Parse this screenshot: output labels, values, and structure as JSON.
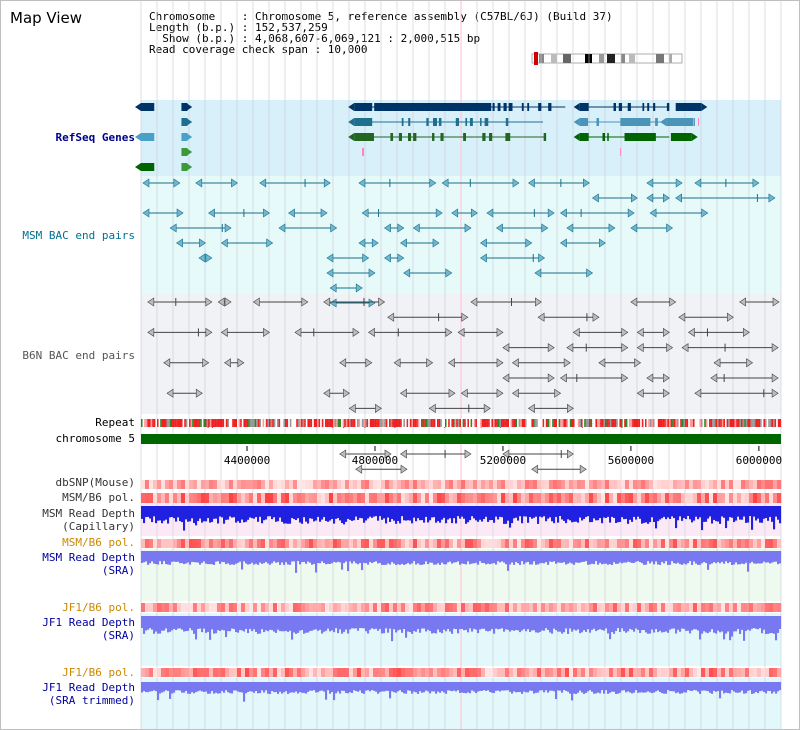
{
  "title": "Map View",
  "info": {
    "chromosome": "Chromosome    : Chromosome 5, reference assembly (C57BL/6J) (Build 37)",
    "length": "Length (b.p.) : 152,537,259",
    "show": "  Show (b.p.) : 4,068,607-6,069,121 : 2,000,515 bp",
    "span": "Read coverage check span : 10,000"
  },
  "view": {
    "start": 4068607,
    "end": 6069121
  },
  "tracks": {
    "refseq": {
      "label": "RefSeq Genes",
      "color": "#00008b",
      "bg": "#d8f0fa"
    },
    "msm_bac": {
      "label": "MSM BAC end pairs",
      "color": "#007090",
      "bg": "#e6fafa"
    },
    "b6n_bac": {
      "label": "B6N BAC end pairs",
      "color": "#404040",
      "bg": "#f0f2f6"
    },
    "repeat": {
      "label": "Repeat"
    },
    "chromosome": {
      "label": "chromosome 5",
      "color": "#006600"
    },
    "dbsnp": {
      "label": "dbSNP(Mouse)",
      "color": "#333333"
    },
    "msm_b6_pol": {
      "label": "MSM/B6 pol.",
      "color": "#333333"
    },
    "msm_depth_cap": {
      "label": "MSM Read Depth\n(Capillary)",
      "color": "#333333"
    },
    "msm_b6_pol2": {
      "label": "MSM/B6 pol.",
      "color": "#cc8800"
    },
    "msm_depth_sra": {
      "label": "MSM Read Depth\n(SRA)",
      "color": "#0000a0"
    },
    "jf1_b6_pol": {
      "label": "JF1/B6 pol.",
      "color": "#cc8800"
    },
    "jf1_depth_sra": {
      "label": "JF1 Read Depth\n(SRA)",
      "color": "#0000a0"
    },
    "jf1_b6_pol2": {
      "label": "JF1/B6 pol.",
      "color": "#cc8800"
    },
    "jf1_depth_trim": {
      "label": "JF1 Read Depth\n(SRA trimmed)",
      "color": "#0000a0"
    }
  },
  "axis": {
    "ticks": [
      {
        "pos": 4400000,
        "label": "4400000"
      },
      {
        "pos": 4800000,
        "label": "4800000"
      },
      {
        "pos": 5200000,
        "label": "5200000"
      },
      {
        "pos": 5600000,
        "label": "5600000"
      },
      {
        "pos": 6000000,
        "label": "6000000"
      }
    ]
  },
  "refseq_genes": [
    {
      "row": 0,
      "start": 4068607,
      "end": 4110000,
      "color": "#003366",
      "strand": "-"
    },
    {
      "row": 0,
      "start": 4195000,
      "end": 4210000,
      "color": "#003366",
      "strand": "+"
    },
    {
      "row": 0,
      "start": 4735000,
      "end": 5395000,
      "color": "#003366",
      "strand": "-"
    },
    {
      "row": 0,
      "start": 5440000,
      "end": 5720000,
      "color": "#003366",
      "strand": "-"
    },
    {
      "row": 0,
      "start": 5740000,
      "end": 5820000,
      "color": "#003366",
      "strand": "+"
    },
    {
      "row": 1,
      "start": 4195000,
      "end": 4210000,
      "color": "#1f6f8f",
      "strand": "+"
    },
    {
      "row": 1,
      "start": 4735000,
      "end": 5325000,
      "color": "#1f6f8f",
      "strand": "-"
    },
    {
      "row": 1,
      "start": 5440000,
      "end": 5700000,
      "color": "#4a94b8",
      "strand": "-"
    },
    {
      "row": 1,
      "start": 5710000,
      "end": 5800000,
      "color": "#4a94b8",
      "strand": "-"
    },
    {
      "row": 2,
      "start": 4068607,
      "end": 4110000,
      "color": "#4aa0c8",
      "strand": "-"
    },
    {
      "row": 2,
      "start": 4195000,
      "end": 4210000,
      "color": "#4aa0c8",
      "strand": "+"
    },
    {
      "row": 2,
      "start": 4735000,
      "end": 5330000,
      "color": "#226622",
      "strand": "-"
    },
    {
      "row": 2,
      "start": 5440000,
      "end": 5720000,
      "color": "#006400",
      "strand": "-"
    },
    {
      "row": 2,
      "start": 5725000,
      "end": 5790000,
      "color": "#006400",
      "strand": "+"
    },
    {
      "row": 3,
      "start": 4195000,
      "end": 4210000,
      "color": "#3a9a3a",
      "strand": "+"
    },
    {
      "row": 4,
      "start": 4068607,
      "end": 4110000,
      "color": "#006400",
      "strand": "-"
    },
    {
      "row": 4,
      "start": 4195000,
      "end": 4210000,
      "color": "#3a9a3a",
      "strand": "+"
    }
  ],
  "msm_bac_pairs": [
    [
      4068607,
      4190000
    ],
    [
      4240000,
      4370000
    ],
    [
      4440000,
      4660000
    ],
    [
      4750000,
      4990000
    ],
    [
      5010000,
      5250000
    ],
    [
      5280000,
      5470000
    ],
    [
      5480000,
      5620000
    ],
    [
      5650000,
      5760000
    ],
    [
      5800000,
      6000000
    ],
    [
      4068607,
      4200000
    ],
    [
      4280000,
      4470000
    ],
    [
      4530000,
      4650000
    ],
    [
      4760000,
      5010000
    ],
    [
      5040000,
      5120000
    ],
    [
      5150000,
      5360000
    ],
    [
      5380000,
      5610000
    ],
    [
      5650000,
      5720000
    ],
    [
      5740000,
      6050000
    ],
    [
      4160000,
      4350000
    ],
    [
      4500000,
      4680000
    ],
    [
      4830000,
      4890000
    ],
    [
      4920000,
      5100000
    ],
    [
      5180000,
      5340000
    ],
    [
      5400000,
      5550000
    ],
    [
      5660000,
      5840000
    ],
    [
      4180000,
      4270000
    ],
    [
      4320000,
      4480000
    ],
    [
      4750000,
      4810000
    ],
    [
      4880000,
      5000000
    ],
    [
      5130000,
      5290000
    ],
    [
      5380000,
      5520000
    ],
    [
      5600000,
      5730000
    ],
    [
      4250000,
      4290000
    ],
    [
      4650000,
      4780000
    ],
    [
      4830000,
      4890000
    ],
    [
      5130000,
      5330000
    ],
    [
      4650000,
      4800000
    ],
    [
      4890000,
      5040000
    ],
    [
      5300000,
      5480000
    ],
    [
      4660000,
      4760000
    ],
    [
      4660000,
      4800000
    ]
  ],
  "b6n_bac_pairs": [
    [
      4090000,
      4290000
    ],
    [
      4310000,
      4350000
    ],
    [
      4420000,
      4590000
    ],
    [
      4640000,
      4830000
    ],
    [
      4840000,
      5090000
    ],
    [
      5100000,
      5320000
    ],
    [
      5310000,
      5500000
    ],
    [
      5600000,
      5740000
    ],
    [
      5750000,
      5920000
    ],
    [
      5940000,
      6069121
    ],
    [
      4090000,
      4290000
    ],
    [
      4320000,
      4470000
    ],
    [
      4550000,
      4750000
    ],
    [
      4780000,
      5040000
    ],
    [
      5060000,
      5200000
    ],
    [
      5200000,
      5360000
    ],
    [
      5420000,
      5590000
    ],
    [
      5620000,
      5720000
    ],
    [
      5780000,
      5970000
    ],
    [
      4140000,
      4280000
    ],
    [
      4330000,
      4390000
    ],
    [
      4690000,
      4790000
    ],
    [
      4860000,
      4980000
    ],
    [
      5030000,
      5200000
    ],
    [
      5200000,
      5360000
    ],
    [
      5400000,
      5590000
    ],
    [
      5620000,
      5730000
    ],
    [
      5760000,
      6060000
    ],
    [
      4150000,
      4260000
    ],
    [
      4640000,
      4720000
    ],
    [
      4720000,
      4820000
    ],
    [
      4880000,
      5050000
    ],
    [
      5070000,
      5200000
    ],
    [
      5230000,
      5410000
    ],
    [
      5500000,
      5630000
    ],
    [
      5860000,
      5980000
    ],
    [
      4260000,
      4310000
    ],
    [
      4650000,
      4720000
    ],
    [
      4750000,
      4880000
    ],
    [
      4970000,
      5160000
    ],
    [
      5230000,
      5380000
    ],
    [
      5380000,
      5590000
    ],
    [
      5650000,
      5720000
    ],
    [
      5850000,
      6060000
    ],
    [
      4650000,
      4760000
    ],
    [
      4800000,
      4930000
    ],
    [
      5000000,
      5210000
    ],
    [
      5280000,
      5420000
    ],
    [
      5620000,
      5720000
    ],
    [
      5800000,
      6060000
    ],
    [
      4690000,
      4850000
    ],
    [
      4880000,
      5100000
    ],
    [
      5200000,
      5380000
    ],
    [
      5430000,
      5590000
    ],
    [
      4740000,
      4900000
    ],
    [
      5200000,
      5420000
    ],
    [
      5290000,
      5460000
    ]
  ],
  "colors": {
    "grid": "#c9c9d6",
    "center_line": "#ffc8d8",
    "depth_blue": "#2020e0",
    "depth_light": "#7878f0",
    "pol_red": "#ff5555",
    "pol_pale": "#ffc6c6"
  }
}
